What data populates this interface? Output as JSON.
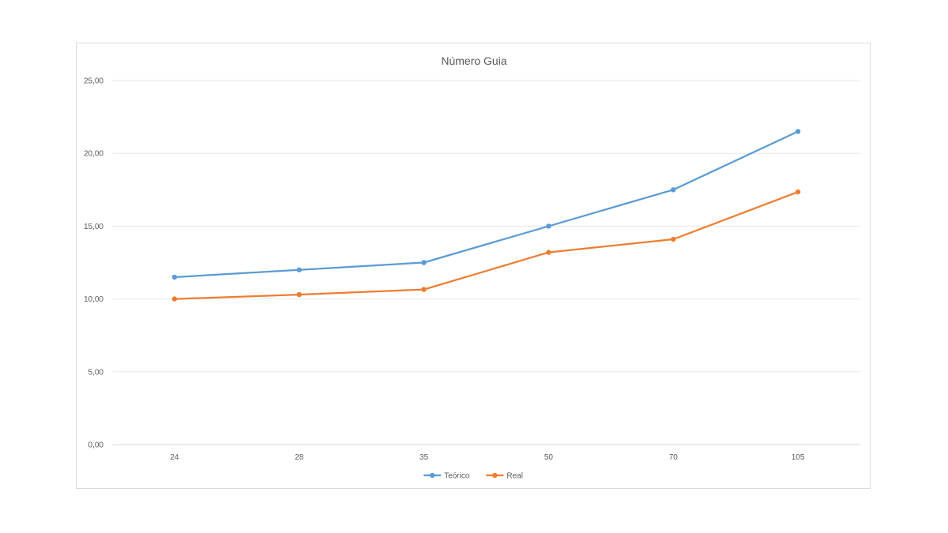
{
  "chart_data": {
    "type": "line",
    "title": "Número Guia",
    "xlabel": "",
    "ylabel": "",
    "categories": [
      "24",
      "28",
      "35",
      "50",
      "70",
      "105"
    ],
    "y_ticks": [
      "0,00",
      "5,00",
      "10,00",
      "15,00",
      "20,00",
      "25,00"
    ],
    "ylim": [
      0,
      25
    ],
    "grid": true,
    "legend_position": "bottom",
    "series": [
      {
        "name": "Teórico",
        "color": "#5b9bd5",
        "values": [
          11.5,
          12.0,
          12.5,
          15.0,
          17.5,
          21.5
        ]
      },
      {
        "name": "Real",
        "color": "#ed7d31",
        "values": [
          10.0,
          10.3,
          10.65,
          13.2,
          14.1,
          17.35
        ]
      }
    ]
  }
}
